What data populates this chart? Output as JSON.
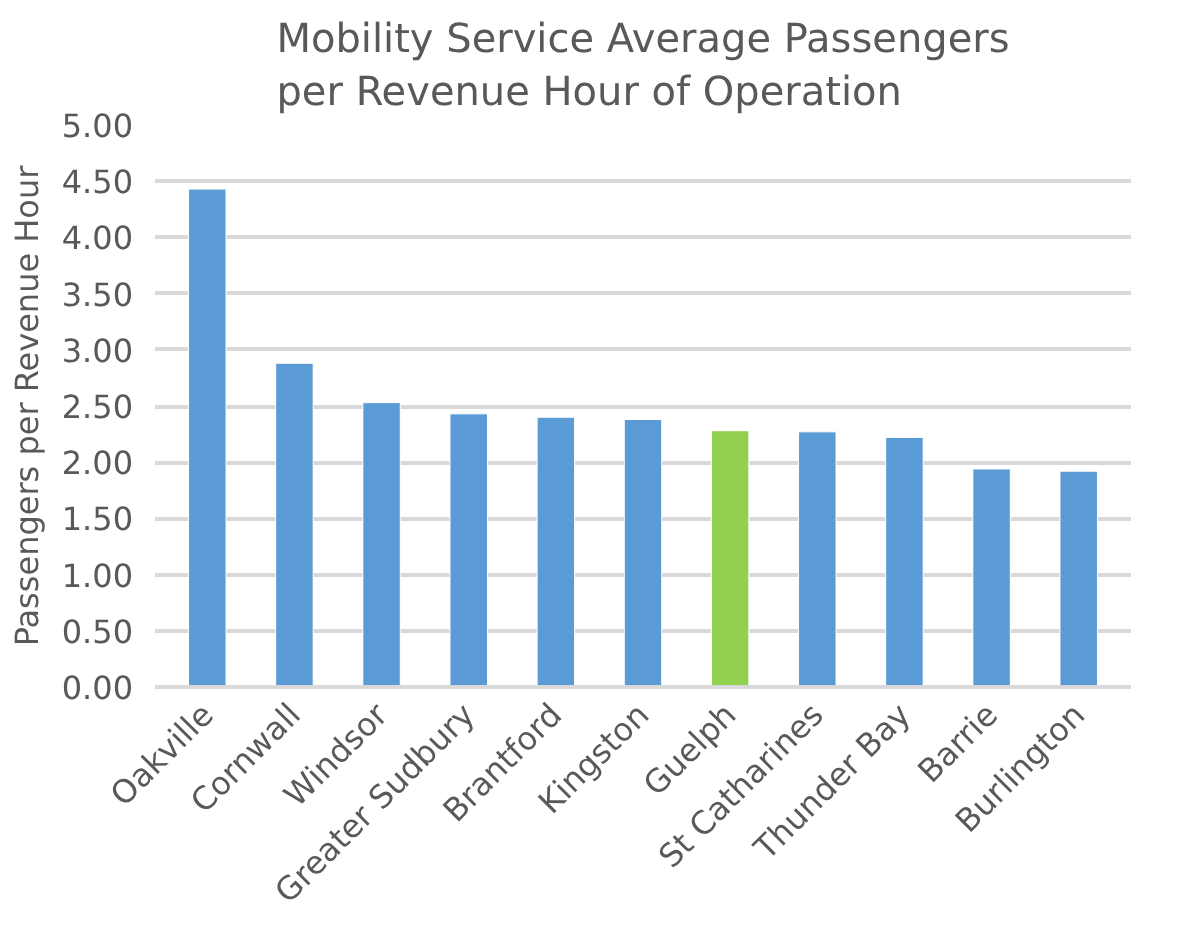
{
  "chart_data": {
    "type": "bar",
    "title": "Mobility Service Average Passengers per Revenue Hour of Operation",
    "ylabel": "Passengers per Revenue Hour",
    "categories": [
      "Oakville",
      "Cornwall",
      "Windsor",
      "Greater Sudbury",
      "Brantford",
      "Kingston",
      "Guelph",
      "St Catharines",
      "Thunder Bay",
      "Barrie",
      "Burlington"
    ],
    "values": [
      4.43,
      2.88,
      2.53,
      2.43,
      2.4,
      2.38,
      2.28,
      2.27,
      2.22,
      1.94,
      1.92
    ],
    "colors": [
      "#5b9bd5",
      "#5b9bd5",
      "#5b9bd5",
      "#5b9bd5",
      "#5b9bd5",
      "#5b9bd5",
      "#92d050",
      "#5b9bd5",
      "#5b9bd5",
      "#5b9bd5",
      "#5b9bd5"
    ],
    "ylim": [
      0,
      5
    ],
    "yticks": [
      {
        "value": 0,
        "label": "0.00"
      },
      {
        "value": 0.5,
        "label": "0.50"
      },
      {
        "value": 1,
        "label": "1.00"
      },
      {
        "value": 1.5,
        "label": "1.50"
      },
      {
        "value": 2,
        "label": "2.00"
      },
      {
        "value": 2.5,
        "label": "2.50"
      },
      {
        "value": 3,
        "label": "3.00"
      },
      {
        "value": 3.5,
        "label": "3.50"
      },
      {
        "value": 4,
        "label": "4.00"
      },
      {
        "value": 4.5,
        "label": "4.50"
      },
      {
        "value": 5,
        "label": "5.00"
      }
    ],
    "grid": "y"
  }
}
